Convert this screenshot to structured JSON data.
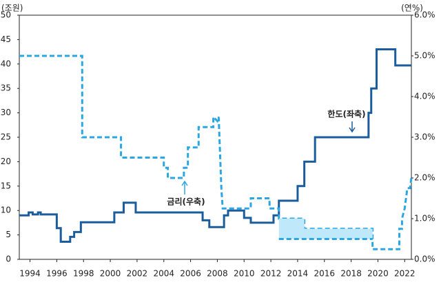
{
  "chart_data": {
    "type": "line",
    "y_title": "(조원)",
    "y2_title": "(연%)",
    "xlim": [
      1993.2,
      2022.5
    ],
    "xticks": [
      1994,
      1996,
      1998,
      2000,
      2002,
      2004,
      2006,
      2008,
      2010,
      2012,
      2014,
      2016,
      2018,
      2020,
      2022
    ],
    "ylim": [
      0,
      50
    ],
    "yticks": [
      0,
      5,
      10,
      15,
      20,
      25,
      30,
      35,
      40,
      45,
      50
    ],
    "y2lim": [
      0,
      6
    ],
    "y2ticks": [
      {
        "value": 0,
        "label": "0.0%"
      },
      {
        "value": 1,
        "label": "1.0%"
      },
      {
        "value": 2,
        "label": "2.0%"
      },
      {
        "value": 3,
        "label": "3.0%"
      },
      {
        "value": 4,
        "label": "4.0%"
      },
      {
        "value": 5,
        "label": "5.0%"
      },
      {
        "value": 6,
        "label": "6.0%"
      }
    ],
    "series": [
      {
        "name": "한도(좌축)",
        "color": "#1b5c9c",
        "dashed": false,
        "x": [
          1993.2,
          1993.9,
          1993.9,
          1994.2,
          1994.2,
          1994.6,
          1994.6,
          1994.8,
          1994.8,
          1996.0,
          1996.0,
          1996.3,
          1996.3,
          1997.0,
          1997.0,
          1997.3,
          1997.3,
          1997.8,
          1997.8,
          2000.3,
          2000.3,
          2001.0,
          2001.0,
          2001.9,
          2001.9,
          2006.9,
          2006.9,
          2007.4,
          2007.4,
          2008.5,
          2008.5,
          2008.8,
          2008.8,
          2010.0,
          2010.0,
          2010.5,
          2010.5,
          2012.2,
          2012.2,
          2012.6,
          2012.6,
          2014.0,
          2014.0,
          2014.5,
          2014.5,
          2015.3,
          2015.3,
          2019.3,
          2019.3,
          2019.5,
          2019.5,
          2019.9,
          2019.9,
          2021.3,
          2021.3,
          2022.5
        ],
        "values": [
          9.0,
          9.0,
          9.6,
          9.6,
          9.2,
          9.2,
          9.6,
          9.6,
          9.2,
          9.2,
          6.4,
          6.4,
          3.6,
          3.6,
          4.6,
          4.6,
          5.6,
          5.6,
          7.6,
          7.6,
          9.6,
          9.6,
          11.6,
          11.6,
          9.6,
          9.6,
          8.0,
          8.0,
          6.6,
          6.6,
          9.0,
          9.0,
          10.0,
          10.0,
          8.5,
          8.5,
          7.5,
          7.5,
          9.0,
          9.0,
          12.0,
          12.0,
          15.0,
          15.0,
          20.0,
          20.0,
          25.0,
          25.0,
          30.0,
          30.0,
          35.0,
          35.0,
          43.0,
          43.0,
          39.7,
          39.7
        ]
      },
      {
        "name": "금리(우축)",
        "color": "#2aa6e2",
        "axis": "y2",
        "dashed": true,
        "x": [
          1993.2,
          1997.9,
          1997.9,
          2000.8,
          2000.8,
          2004.0,
          2004.0,
          2004.3,
          2004.3,
          2005.5,
          2005.5,
          2005.8,
          2005.8,
          2006.6,
          2006.6,
          2007.7,
          2007.7,
          2008.0,
          2008.1,
          2008.3,
          2008.4,
          2010.5,
          2010.5,
          2011.9,
          2011.9,
          2012.6,
          2012.6,
          2014.5,
          2014.5,
          2019.6,
          2019.6,
          2021.6,
          2021.6,
          2021.8,
          2021.8,
          2022.0,
          2022.1,
          2022.2,
          2022.4,
          2022.5
        ],
        "values": [
          5.0,
          5.0,
          3.0,
          3.0,
          2.5,
          2.5,
          2.25,
          2.25,
          2.0,
          2.0,
          2.25,
          2.25,
          2.75,
          2.75,
          3.25,
          3.25,
          3.5,
          3.4,
          3.5,
          1.75,
          1.25,
          1.25,
          1.5,
          1.5,
          1.25,
          1.25,
          1.0,
          1.0,
          0.75,
          0.75,
          0.25,
          0.25,
          0.75,
          0.75,
          1.0,
          1.25,
          1.5,
          1.75,
          1.75,
          2.0
        ]
      },
      {
        "color": "#2aa6e2",
        "axis": "y2",
        "dashed": true,
        "band_color": "#bfe8fa",
        "x": [
          2012.6,
          2014.5,
          2014.5,
          2019.6
        ],
        "values": [
          0.5,
          0.5,
          0.5,
          0.5
        ],
        "upper": [
          1.0,
          1.0,
          0.75,
          0.75
        ]
      }
    ]
  }
}
